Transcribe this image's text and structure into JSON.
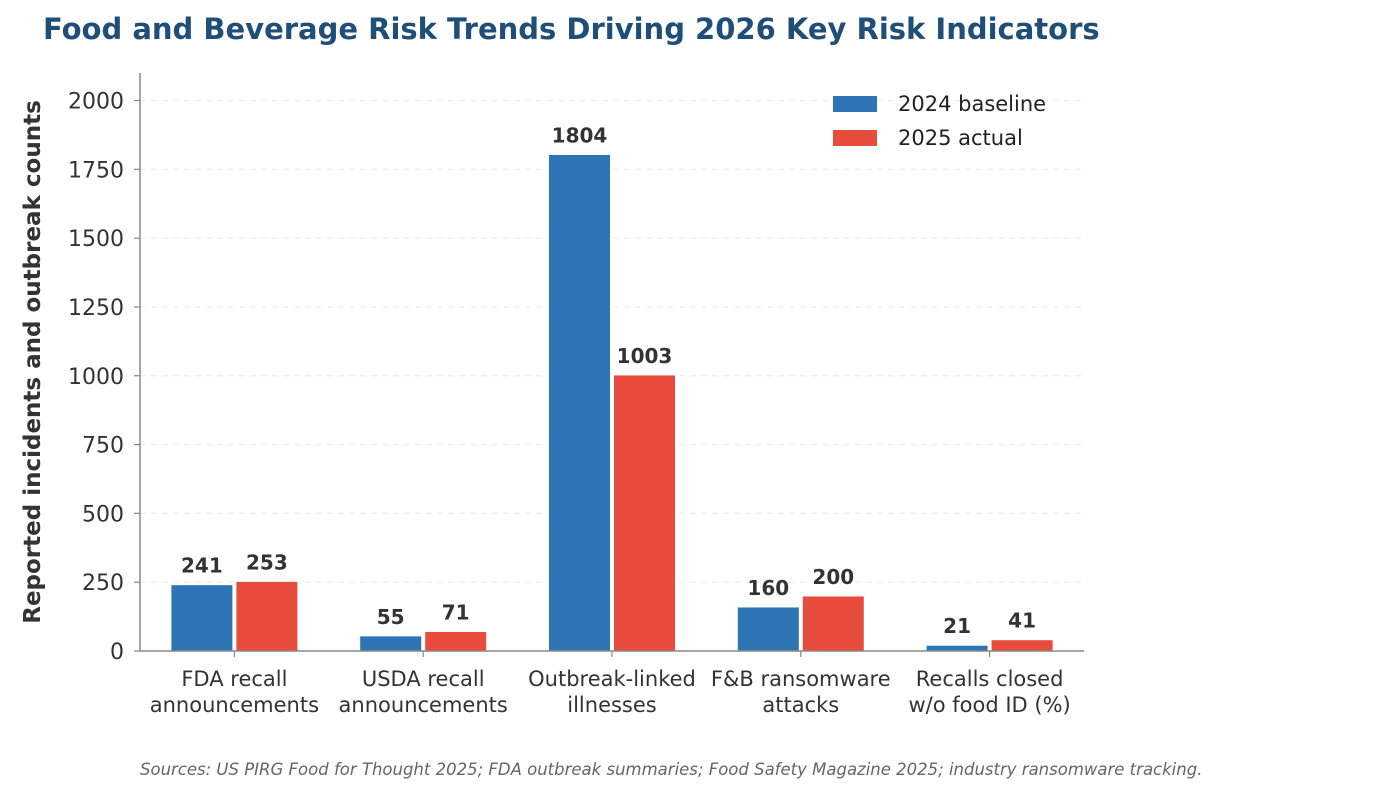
{
  "chart_data": {
    "type": "bar",
    "title": "Food and Beverage Risk Trends Driving 2026 Key Risk Indicators",
    "ylabel": "Reported incidents and outbreak counts",
    "xlabel": "",
    "ylim": [
      0,
      2100
    ],
    "yticks": [
      0,
      250,
      500,
      750,
      1000,
      1250,
      1500,
      1750,
      2000
    ],
    "grid": "horizontal-dashed",
    "legend_position": "top-right",
    "categories": [
      [
        "FDA recall",
        "announcements"
      ],
      [
        "USDA recall",
        "announcements"
      ],
      [
        "Outbreak-linked",
        "illnesses"
      ],
      [
        "F&B ransomware",
        "attacks"
      ],
      [
        "Recalls closed",
        "w/o food ID (%)"
      ]
    ],
    "series": [
      {
        "name": "2024 baseline",
        "color": "#2e75b6",
        "values": [
          241,
          55,
          1804,
          160,
          21
        ]
      },
      {
        "name": "2025 actual",
        "color": "#e84c3d",
        "values": [
          253,
          71,
          1003,
          200,
          41
        ]
      }
    ],
    "source": "Sources: US PIRG Food for Thought 2025; FDA outbreak summaries; Food Safety Magazine 2025; industry ransomware tracking."
  }
}
